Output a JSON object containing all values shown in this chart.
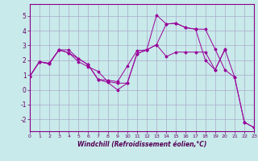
{
  "background_color": "#c8eaea",
  "grid_color": "#aaaacc",
  "line_color": "#990099",
  "xlabel": "Windchill (Refroidissement éolien,°C)",
  "xlim": [
    0,
    23
  ],
  "ylim": [
    -2.8,
    5.8
  ],
  "yticks": [
    -2,
    -1,
    0,
    1,
    2,
    3,
    4,
    5
  ],
  "xticks": [
    0,
    1,
    2,
    3,
    4,
    5,
    6,
    7,
    8,
    9,
    10,
    11,
    12,
    13,
    14,
    15,
    16,
    17,
    18,
    19,
    20,
    21,
    22,
    23
  ],
  "series": [
    [
      [
        0,
        1,
        2,
        3,
        4,
        5,
        6,
        7,
        8,
        9,
        10,
        11,
        12,
        13,
        14,
        15,
        16,
        17,
        18,
        19,
        20
      ],
      [
        0.9,
        1.9,
        1.8,
        2.7,
        2.7,
        2.1,
        1.7,
        0.7,
        0.65,
        0.55,
        1.6,
        2.65,
        2.7,
        3.05,
        2.25,
        2.55,
        2.55,
        2.55,
        2.55,
        1.35,
        2.7
      ]
    ],
    [
      [
        0,
        1,
        2,
        3,
        4,
        5,
        6,
        7,
        8,
        9,
        10,
        11,
        12,
        13,
        14,
        15,
        16,
        17,
        18,
        19,
        20,
        21,
        22,
        23
      ],
      [
        0.9,
        1.9,
        1.75,
        2.7,
        2.5,
        1.9,
        1.55,
        1.25,
        0.55,
        0.45,
        0.45,
        2.45,
        2.7,
        5.05,
        4.45,
        4.5,
        4.2,
        4.1,
        4.1,
        2.75,
        1.35,
        0.85,
        -2.2,
        -2.55
      ]
    ],
    [
      [
        0,
        1,
        2,
        3,
        4,
        5,
        6,
        7,
        8,
        9,
        10,
        11,
        12,
        13,
        14,
        15,
        16,
        17,
        18,
        19,
        20,
        21,
        22,
        23
      ],
      [
        0.9,
        1.9,
        1.75,
        2.7,
        2.5,
        2.1,
        1.7,
        0.7,
        0.5,
        0.0,
        0.45,
        2.45,
        2.7,
        3.05,
        4.45,
        4.5,
        4.2,
        4.1,
        2.0,
        1.35,
        2.75,
        0.85,
        -2.2,
        -2.55
      ]
    ]
  ]
}
